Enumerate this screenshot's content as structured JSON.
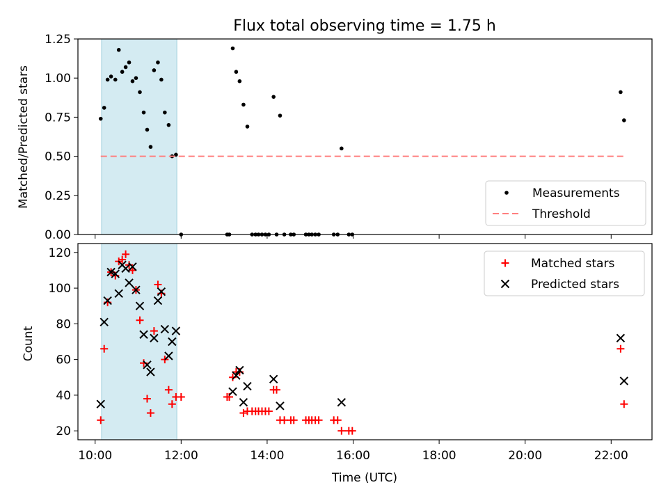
{
  "chart_data": [
    {
      "type": "scatter",
      "title": "Flux total observing time = 1.75 h",
      "xlabel": "",
      "ylabel": "Matched/Predicted stars",
      "ylim": [
        0,
        1.25
      ],
      "yticks": [
        "0.00",
        "0.25",
        "0.50",
        "0.75",
        "1.00",
        "1.25"
      ],
      "xlim_hours": [
        9.6,
        22.95
      ],
      "shaded_span_hours": [
        10.15,
        11.9
      ],
      "shade_color": "#add8e6",
      "series": [
        {
          "name": "Measurements",
          "marker": "dot",
          "color": "#000000",
          "points": [
            [
              10.13,
              0.74
            ],
            [
              10.21,
              0.81
            ],
            [
              10.29,
              0.99
            ],
            [
              10.37,
              1.01
            ],
            [
              10.47,
              0.99
            ],
            [
              10.55,
              1.18
            ],
            [
              10.63,
              1.04
            ],
            [
              10.71,
              1.07
            ],
            [
              10.79,
              1.1
            ],
            [
              10.87,
              0.98
            ],
            [
              10.95,
              1.0
            ],
            [
              11.04,
              0.91
            ],
            [
              11.13,
              0.78
            ],
            [
              11.21,
              0.67
            ],
            [
              11.29,
              0.56
            ],
            [
              11.37,
              1.05
            ],
            [
              11.46,
              1.1
            ],
            [
              11.54,
              0.99
            ],
            [
              11.62,
              0.78
            ],
            [
              11.71,
              0.7
            ],
            [
              11.79,
              0.5
            ],
            [
              11.88,
              0.51
            ],
            [
              12.0,
              0.0
            ],
            [
              13.07,
              0.0
            ],
            [
              13.12,
              0.0
            ],
            [
              13.2,
              1.19
            ],
            [
              13.28,
              1.04
            ],
            [
              13.36,
              0.98
            ],
            [
              13.45,
              0.83
            ],
            [
              13.54,
              0.69
            ],
            [
              13.65,
              0.0
            ],
            [
              13.73,
              0.0
            ],
            [
              13.8,
              0.0
            ],
            [
              13.88,
              0.0
            ],
            [
              13.96,
              0.0
            ],
            [
              14.04,
              0.0
            ],
            [
              14.15,
              0.88
            ],
            [
              14.22,
              0.0
            ],
            [
              14.3,
              0.76
            ],
            [
              14.4,
              0.0
            ],
            [
              14.55,
              0.0
            ],
            [
              14.62,
              0.0
            ],
            [
              14.9,
              0.0
            ],
            [
              14.97,
              0.0
            ],
            [
              15.04,
              0.0
            ],
            [
              15.12,
              0.0
            ],
            [
              15.2,
              0.0
            ],
            [
              15.55,
              0.0
            ],
            [
              15.64,
              0.0
            ],
            [
              15.73,
              0.55
            ],
            [
              15.9,
              0.0
            ],
            [
              15.98,
              0.0
            ],
            [
              22.22,
              0.91
            ],
            [
              22.3,
              0.73
            ]
          ]
        },
        {
          "name": "Threshold",
          "line": "dashed",
          "color": "#ff7f7f",
          "x": [
            10.13,
            22.3
          ],
          "y": [
            0.5,
            0.5
          ]
        }
      ],
      "legend": {
        "placement": "lower-right",
        "labels": [
          "Measurements",
          "Threshold"
        ]
      }
    },
    {
      "type": "scatter",
      "title": "",
      "xlabel": "Time (UTC)",
      "ylabel": "Count",
      "ylim": [
        15,
        125
      ],
      "yticks": [
        "20",
        "40",
        "60",
        "80",
        "100",
        "120"
      ],
      "xticks": [
        "10:00",
        "12:00",
        "14:00",
        "16:00",
        "18:00",
        "20:00",
        "22:00"
      ],
      "xtick_hours": [
        10,
        12,
        14,
        16,
        18,
        20,
        22
      ],
      "xlim_hours": [
        9.6,
        22.95
      ],
      "shaded_span_hours": [
        10.15,
        11.9
      ],
      "shade_color": "#add8e6",
      "series": [
        {
          "name": "Matched stars",
          "marker": "plus",
          "color": "#ff0000",
          "points": [
            [
              10.13,
              26
            ],
            [
              10.21,
              66
            ],
            [
              10.29,
              92
            ],
            [
              10.37,
              109
            ],
            [
              10.47,
              107
            ],
            [
              10.55,
              115
            ],
            [
              10.63,
              116
            ],
            [
              10.71,
              119
            ],
            [
              10.79,
              113
            ],
            [
              10.87,
              110
            ],
            [
              10.95,
              99
            ],
            [
              11.04,
              82
            ],
            [
              11.13,
              58
            ],
            [
              11.21,
              38
            ],
            [
              11.29,
              30
            ],
            [
              11.37,
              76
            ],
            [
              11.46,
              102
            ],
            [
              11.54,
              97
            ],
            [
              11.62,
              60
            ],
            [
              11.71,
              43
            ],
            [
              11.79,
              35
            ],
            [
              11.88,
              39
            ],
            [
              12.0,
              39
            ],
            [
              13.07,
              39
            ],
            [
              13.12,
              39
            ],
            [
              13.2,
              50
            ],
            [
              13.28,
              53
            ],
            [
              13.36,
              53
            ],
            [
              13.45,
              30
            ],
            [
              13.54,
              31
            ],
            [
              13.65,
              31
            ],
            [
              13.73,
              31
            ],
            [
              13.8,
              31
            ],
            [
              13.88,
              31
            ],
            [
              13.96,
              31
            ],
            [
              14.04,
              31
            ],
            [
              14.15,
              43
            ],
            [
              14.22,
              43
            ],
            [
              14.3,
              26
            ],
            [
              14.4,
              26
            ],
            [
              14.55,
              26
            ],
            [
              14.62,
              26
            ],
            [
              14.9,
              26
            ],
            [
              14.97,
              26
            ],
            [
              15.04,
              26
            ],
            [
              15.12,
              26
            ],
            [
              15.2,
              26
            ],
            [
              15.55,
              26
            ],
            [
              15.64,
              26
            ],
            [
              15.73,
              20
            ],
            [
              15.9,
              20
            ],
            [
              15.98,
              20
            ],
            [
              22.22,
              66
            ],
            [
              22.3,
              35
            ]
          ]
        },
        {
          "name": "Predicted stars",
          "marker": "x",
          "color": "#000000",
          "points": [
            [
              10.13,
              35
            ],
            [
              10.21,
              81
            ],
            [
              10.29,
              93
            ],
            [
              10.37,
              109
            ],
            [
              10.47,
              108
            ],
            [
              10.55,
              97
            ],
            [
              10.63,
              113
            ],
            [
              10.71,
              111
            ],
            [
              10.79,
              103
            ],
            [
              10.87,
              112
            ],
            [
              10.95,
              99
            ],
            [
              11.04,
              90
            ],
            [
              11.13,
              74
            ],
            [
              11.21,
              57
            ],
            [
              11.29,
              53
            ],
            [
              11.37,
              72
            ],
            [
              11.46,
              93
            ],
            [
              11.54,
              98
            ],
            [
              11.62,
              77
            ],
            [
              11.71,
              62
            ],
            [
              11.79,
              70
            ],
            [
              11.88,
              76
            ],
            [
              13.2,
              42
            ],
            [
              13.28,
              51
            ],
            [
              13.36,
              54
            ],
            [
              13.45,
              36
            ],
            [
              13.54,
              45
            ],
            [
              14.15,
              49
            ],
            [
              14.3,
              34
            ],
            [
              15.73,
              36
            ],
            [
              22.22,
              72
            ],
            [
              22.3,
              48
            ]
          ]
        }
      ],
      "legend": {
        "placement": "upper-right",
        "labels": [
          "Matched stars",
          "Predicted stars"
        ]
      }
    }
  ]
}
